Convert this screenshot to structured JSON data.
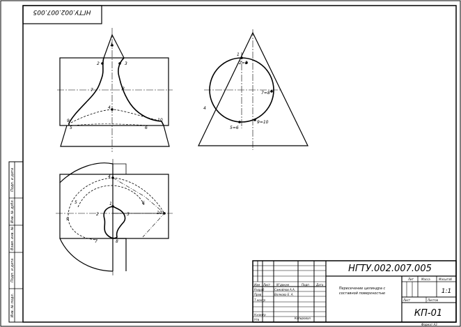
{
  "stamp_top": "НГТУ.002.007.005",
  "side_strip": [
    "Подп. и дата",
    "Инв. № дубл.",
    "Взам. инв. №",
    "Подп. и дата",
    "Инв. № подл."
  ],
  "title_block": {
    "designation": "НГТУ.002.007.005",
    "title_line1": "Пересечение цилиндра с",
    "title_line2": "составной поверхностью",
    "headers": [
      "Изм",
      "Лист",
      "N°докум",
      "Подп",
      "Дата"
    ],
    "roles": [
      "Разраб",
      "Пров",
      "Т.контр",
      "Н.контр",
      "Утв"
    ],
    "names": [
      "Самойлов А.А.",
      "Волкова Е. А."
    ],
    "col_lit": "Лит",
    "col_mass": "Масса",
    "col_scale": "Масштаб",
    "scale_value": "1:1",
    "sheet_label": "Лист",
    "sheets_label": "Листов",
    "group_code": "КП-01",
    "copied": "Копировал",
    "format": "Формат  А3"
  },
  "front_labels": {
    "p1": "1",
    "p2": "2",
    "p3": "3",
    "p7": "7",
    "p8": "8",
    "p4": "4",
    "p5": "5",
    "p6": "6",
    "p9": "9",
    "p10": "10"
  },
  "side_labels": {
    "p1": "1",
    "p23": "2=3",
    "p78": "7=8",
    "p4": "4",
    "p56": "5=6",
    "p910": "9=10"
  },
  "top_labels": {
    "p4": "4",
    "p5": "5",
    "p6": "6",
    "p9": "9",
    "p1": "1",
    "p2": "2",
    "p3": "3",
    "p10": "10",
    "p7": "7",
    "p8": "8"
  }
}
